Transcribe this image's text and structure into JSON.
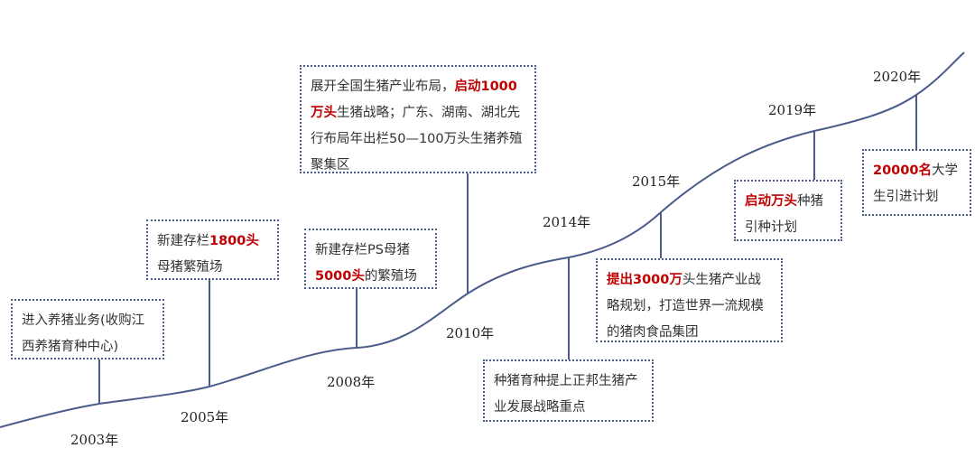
{
  "colors": {
    "curve": "#4b5c8c",
    "highlight": "#c00000",
    "text": "#333333"
  },
  "events": [
    {
      "year": "2003年",
      "segments": [
        {
          "text": "进入养猪业务(收购江西养猪育种中心)",
          "hl": false
        }
      ]
    },
    {
      "year": "2005年",
      "segments": [
        {
          "text": "新建存栏",
          "hl": false
        },
        {
          "text": "1800头",
          "hl": true
        },
        {
          "text": "母猪繁殖场",
          "hl": false
        }
      ]
    },
    {
      "year": "2008年",
      "segments": [
        {
          "text": "新建存栏PS母猪",
          "hl": false
        },
        {
          "text": "5000头",
          "hl": true
        },
        {
          "text": "的繁殖场",
          "hl": false
        }
      ]
    },
    {
      "year": "2010年",
      "segments": [
        {
          "text": "展开全国生猪产业布局，",
          "hl": false
        },
        {
          "text": "启动1000万头",
          "hl": true
        },
        {
          "text": "生猪战略；广东、湖南、湖北先行布局年出栏50—100万头生猪养殖聚集区",
          "hl": false
        }
      ]
    },
    {
      "year": "2014年",
      "segments": [
        {
          "text": "种猪育种提上正邦生猪产业发展战略重点",
          "hl": false
        }
      ]
    },
    {
      "year": "2015年",
      "segments": [
        {
          "text": "提出3000万",
          "hl": true
        },
        {
          "text": "头生猪产业战略规划，打造世界一流规模的猪肉食品集团",
          "hl": false
        }
      ]
    },
    {
      "year": "2019年",
      "segments": [
        {
          "text": "启动万头",
          "hl": true
        },
        {
          "text": "种猪引种计划",
          "hl": false
        }
      ]
    },
    {
      "year": "2020年",
      "segments": [
        {
          "text": "20000名",
          "hl": true
        },
        {
          "text": "大学生引进计划",
          "hl": false
        }
      ]
    }
  ]
}
